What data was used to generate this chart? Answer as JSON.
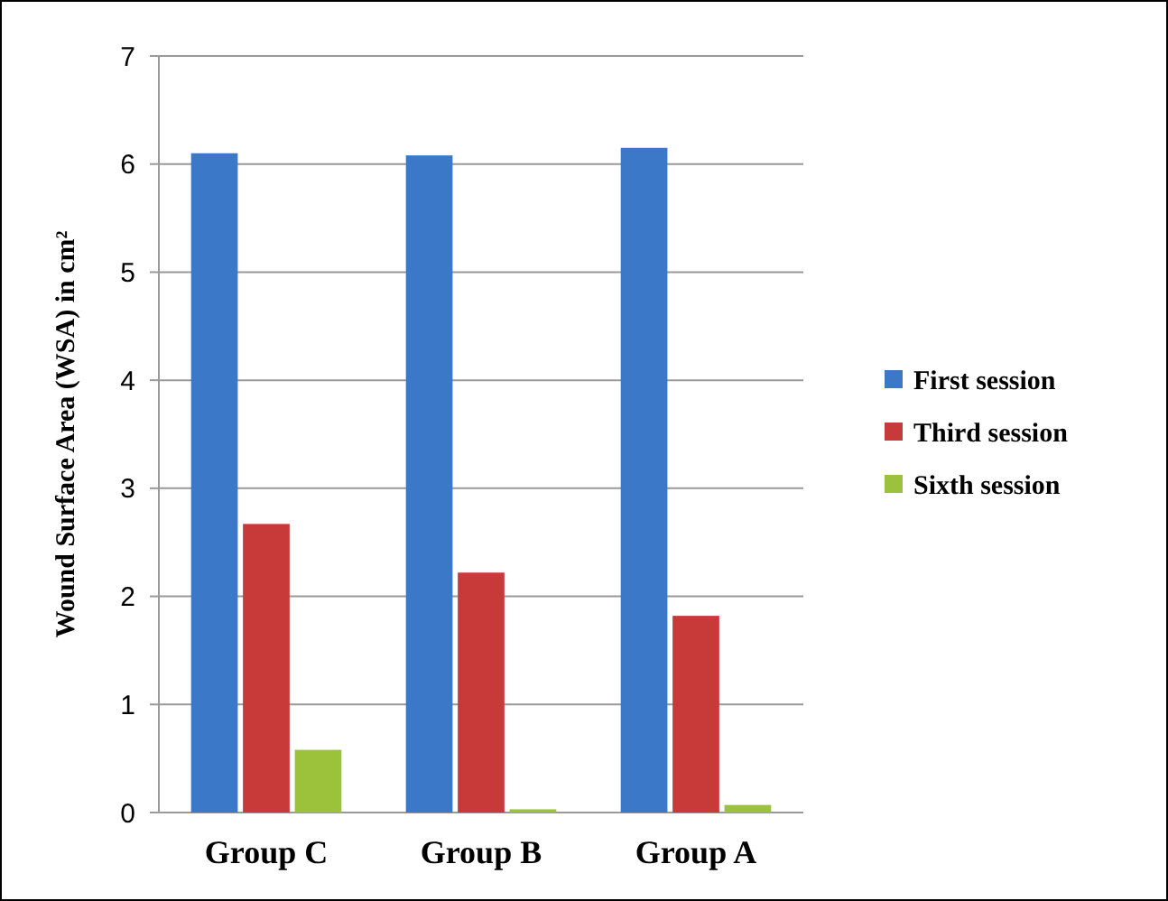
{
  "chart_data": {
    "type": "bar",
    "ylabel": "Wound Surface Area (WSA) in cm²",
    "categories": [
      "Group C",
      "Group B",
      "Group A"
    ],
    "series": [
      {
        "name": "First session",
        "color": "#3b78c8",
        "values": [
          6.1,
          6.08,
          6.15
        ]
      },
      {
        "name": "Third session",
        "color": "#c8393a",
        "values": [
          2.67,
          2.22,
          1.82
        ]
      },
      {
        "name": "Sixth session",
        "color": "#9cc23c",
        "values": [
          0.58,
          0.03,
          0.07
        ]
      }
    ],
    "ylim": [
      0,
      7
    ],
    "yticks": [
      0,
      1,
      2,
      3,
      4,
      5,
      6,
      7
    ],
    "grid": "y",
    "legend": "right"
  }
}
